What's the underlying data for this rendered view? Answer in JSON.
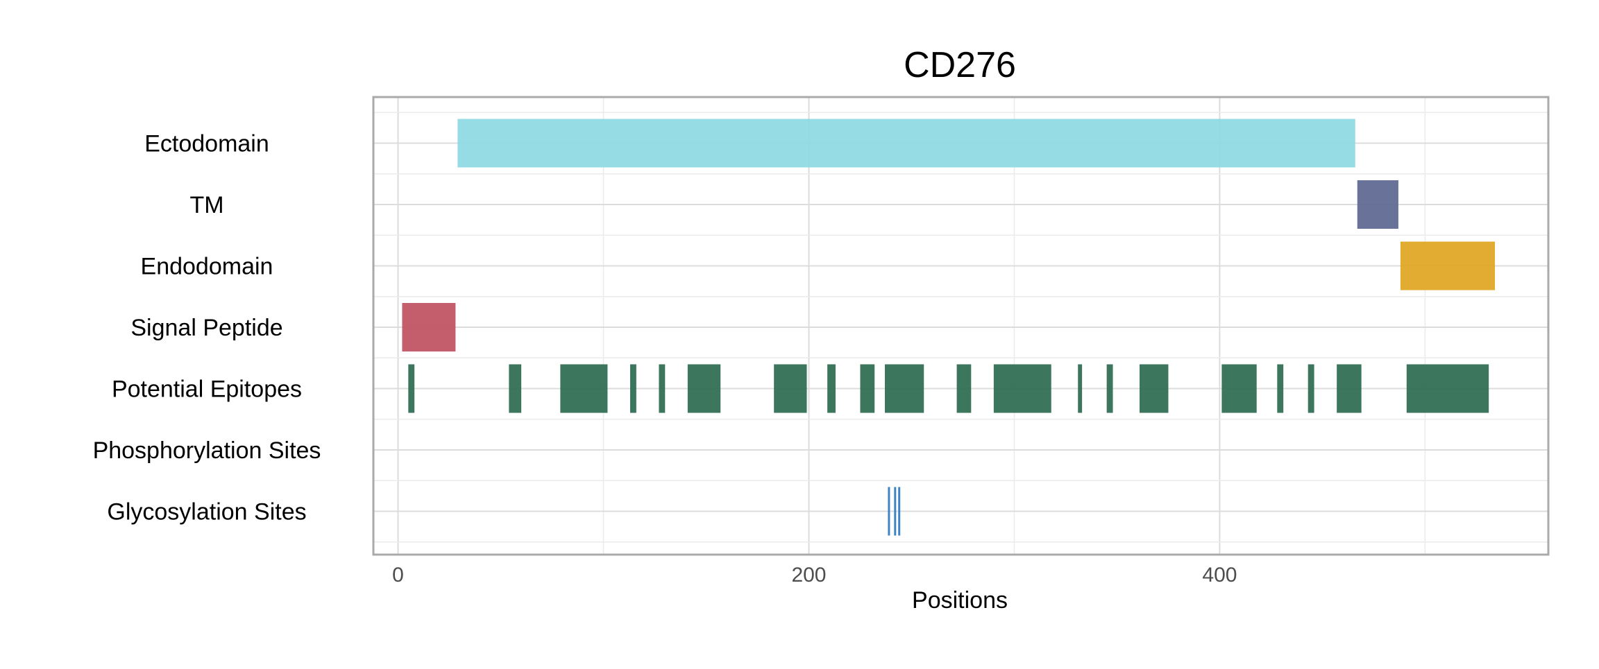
{
  "chart_data": {
    "type": "bar",
    "title": "CD276",
    "xlabel": "Positions",
    "ylabel": "",
    "xlim": [
      -12,
      560
    ],
    "x_ticks": [
      0,
      200,
      400
    ],
    "x_tick_labels": [
      "0",
      "200",
      "400"
    ],
    "grid": true,
    "legend": "none",
    "categories": [
      "Ectodomain",
      "TM",
      "Endodomain",
      "Signal Peptide",
      "Potential Epitopes",
      "Phosphorylation Sites",
      "Glycosylation Sites"
    ],
    "series": [
      {
        "category": "Ectodomain",
        "color": "#8dd9e3",
        "segments": [
          [
            29,
            466
          ]
        ]
      },
      {
        "category": "TM",
        "color": "#5c6791",
        "segments": [
          [
            467,
            487
          ]
        ]
      },
      {
        "category": "Endodomain",
        "color": "#dfa521",
        "segments": [
          [
            488,
            534
          ]
        ]
      },
      {
        "category": "Signal Peptide",
        "color": "#c0505f",
        "segments": [
          [
            2,
            28
          ]
        ]
      },
      {
        "category": "Potential Epitopes",
        "color": "#2b6a4f",
        "segments": [
          [
            5,
            8
          ],
          [
            54,
            60
          ],
          [
            79,
            102
          ],
          [
            113,
            116
          ],
          [
            127,
            130
          ],
          [
            141,
            157
          ],
          [
            183,
            199
          ],
          [
            209,
            213
          ],
          [
            225,
            232
          ],
          [
            237,
            256
          ],
          [
            272,
            279
          ],
          [
            290,
            318
          ],
          [
            331,
            333
          ],
          [
            345,
            348
          ],
          [
            361,
            375
          ],
          [
            401,
            418
          ],
          [
            428,
            431
          ],
          [
            443,
            446
          ],
          [
            457,
            469
          ],
          [
            491,
            531
          ]
        ]
      },
      {
        "category": "Phosphorylation Sites",
        "color": "#3d85c6",
        "segments": []
      },
      {
        "category": "Glycosylation Sites",
        "color": "#3d85c6",
        "sites": [
          239,
          242,
          244
        ]
      }
    ]
  }
}
